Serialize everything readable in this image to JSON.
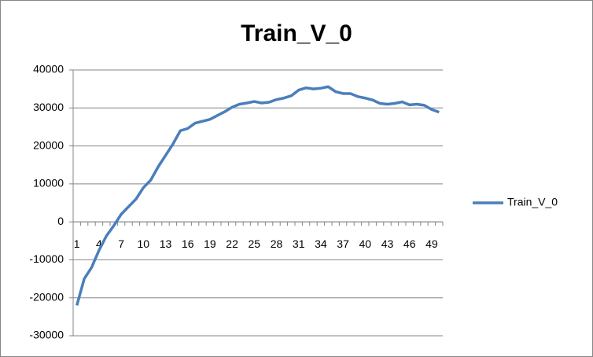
{
  "chart_data": {
    "type": "line",
    "title": "Train_V_0",
    "categories": [
      1,
      null,
      null,
      4,
      null,
      null,
      7,
      null,
      null,
      10,
      null,
      null,
      13,
      null,
      null,
      16,
      null,
      null,
      19,
      null,
      null,
      22,
      null,
      null,
      25,
      null,
      null,
      28,
      null,
      null,
      31,
      null,
      null,
      34,
      null,
      null,
      37,
      null,
      null,
      40,
      null,
      null,
      43,
      null,
      null,
      46,
      null,
      null,
      49,
      null
    ],
    "series": [
      {
        "name": "Train_V_0",
        "color": "#4a7ebb",
        "values": [
          -22000,
          -15000,
          -12000,
          -7500,
          -3700,
          -1000,
          2000,
          4000,
          6000,
          9000,
          11000,
          14500,
          17500,
          20500,
          24000,
          24600,
          26000,
          26500,
          27000,
          28000,
          29000,
          30200,
          31000,
          31300,
          31700,
          31300,
          31500,
          32200,
          32600,
          33200,
          34700,
          35300,
          35000,
          35200,
          35600,
          34300,
          33800,
          33800,
          33000,
          32600,
          32100,
          31200,
          31000,
          31200,
          31600,
          30800,
          31000,
          30700,
          29600,
          28900
        ]
      }
    ],
    "ylim": [
      -30000,
      40000
    ],
    "yticks": [
      -30000,
      -20000,
      -10000,
      0,
      10000,
      20000,
      30000,
      40000
    ],
    "grid": true,
    "legend": "right"
  }
}
